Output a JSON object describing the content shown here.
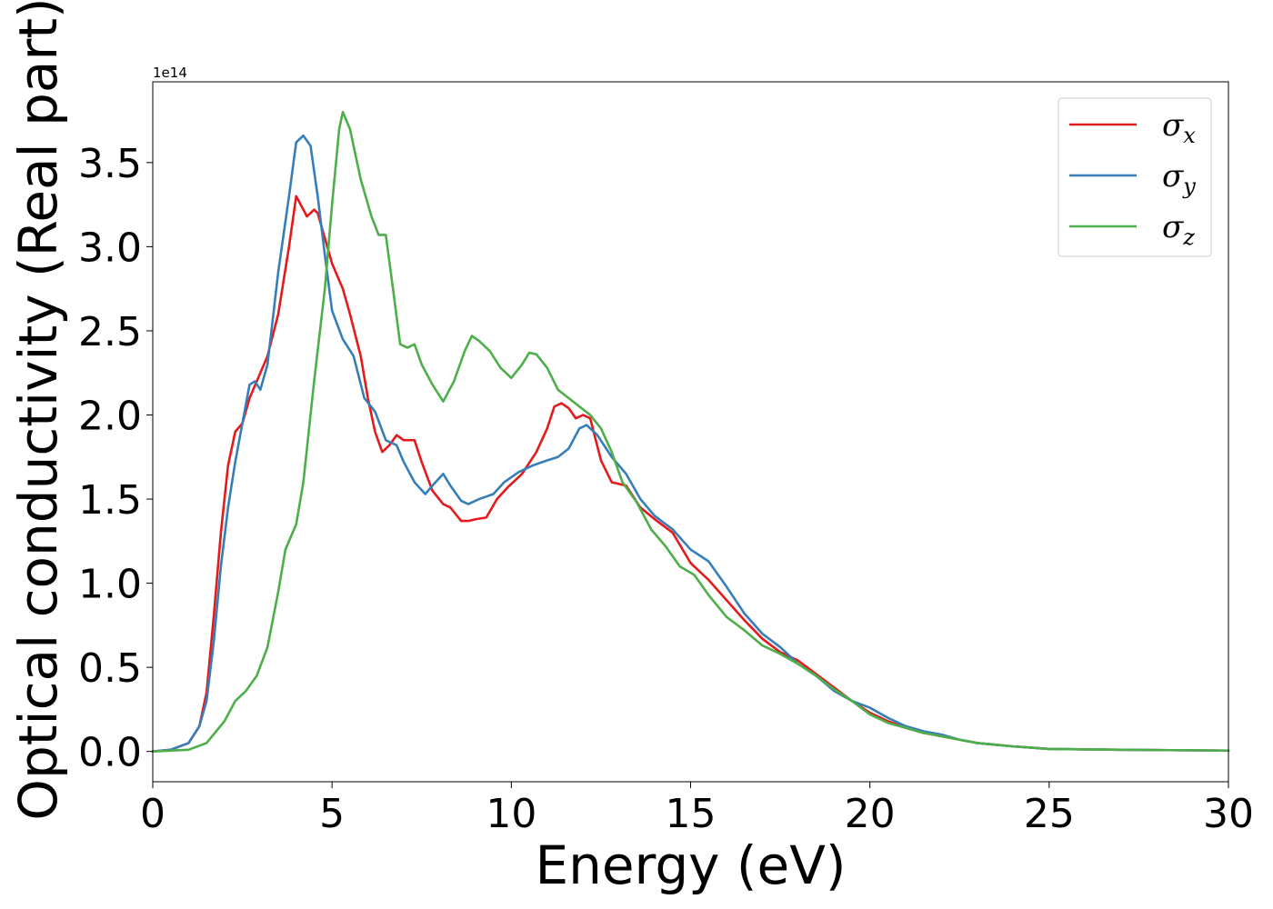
{
  "chart_data": {
    "type": "line",
    "xlabel": "Energy (eV)",
    "ylabel": "Optical conductivity (Real part)",
    "y_offset_label": "1e14",
    "xlim": [
      0,
      30
    ],
    "ylim": [
      -0.18,
      3.98
    ],
    "x_ticks": [
      0,
      5,
      10,
      15,
      20,
      25,
      30
    ],
    "x_tick_labels": [
      "0",
      "5",
      "10",
      "15",
      "20",
      "25",
      "30"
    ],
    "y_ticks": [
      0.0,
      0.5,
      1.0,
      1.5,
      2.0,
      2.5,
      3.0,
      3.5
    ],
    "y_tick_labels": [
      "0.0",
      "0.5",
      "1.0",
      "1.5",
      "2.0",
      "2.5",
      "3.0",
      "3.5"
    ],
    "grid": false,
    "legend_position": "top-right",
    "series": [
      {
        "name": "σx",
        "symbol": "σ",
        "subscript": "x",
        "color": "#e41a1c",
        "points": [
          [
            0,
            0
          ],
          [
            0.5,
            0.01
          ],
          [
            1.0,
            0.05
          ],
          [
            1.3,
            0.15
          ],
          [
            1.5,
            0.35
          ],
          [
            1.7,
            0.8
          ],
          [
            1.9,
            1.3
          ],
          [
            2.1,
            1.7
          ],
          [
            2.3,
            1.9
          ],
          [
            2.5,
            1.95
          ],
          [
            2.7,
            2.1
          ],
          [
            2.9,
            2.2
          ],
          [
            3.2,
            2.35
          ],
          [
            3.5,
            2.6
          ],
          [
            3.8,
            3.0
          ],
          [
            4.0,
            3.3
          ],
          [
            4.2,
            3.22
          ],
          [
            4.3,
            3.18
          ],
          [
            4.5,
            3.22
          ],
          [
            4.6,
            3.2
          ],
          [
            4.8,
            3.05
          ],
          [
            5.0,
            2.9
          ],
          [
            5.3,
            2.75
          ],
          [
            5.5,
            2.6
          ],
          [
            5.8,
            2.35
          ],
          [
            6.0,
            2.1
          ],
          [
            6.2,
            1.9
          ],
          [
            6.4,
            1.78
          ],
          [
            6.6,
            1.82
          ],
          [
            6.8,
            1.88
          ],
          [
            7.0,
            1.85
          ],
          [
            7.3,
            1.85
          ],
          [
            7.5,
            1.72
          ],
          [
            7.8,
            1.55
          ],
          [
            8.1,
            1.47
          ],
          [
            8.3,
            1.45
          ],
          [
            8.6,
            1.37
          ],
          [
            8.8,
            1.37
          ],
          [
            9.0,
            1.38
          ],
          [
            9.3,
            1.39
          ],
          [
            9.6,
            1.5
          ],
          [
            9.9,
            1.57
          ],
          [
            10.3,
            1.65
          ],
          [
            10.7,
            1.78
          ],
          [
            11.0,
            1.92
          ],
          [
            11.2,
            2.05
          ],
          [
            11.4,
            2.07
          ],
          [
            11.6,
            2.04
          ],
          [
            11.8,
            1.98
          ],
          [
            12.0,
            2.0
          ],
          [
            12.2,
            1.98
          ],
          [
            12.5,
            1.73
          ],
          [
            12.8,
            1.6
          ],
          [
            13.2,
            1.58
          ],
          [
            13.6,
            1.45
          ],
          [
            14.0,
            1.38
          ],
          [
            14.5,
            1.3
          ],
          [
            15.0,
            1.12
          ],
          [
            15.5,
            1.02
          ],
          [
            16.0,
            0.9
          ],
          [
            16.5,
            0.78
          ],
          [
            17.0,
            0.67
          ],
          [
            17.5,
            0.59
          ],
          [
            18.0,
            0.54
          ],
          [
            18.5,
            0.46
          ],
          [
            19.0,
            0.38
          ],
          [
            19.5,
            0.3
          ],
          [
            20.0,
            0.23
          ],
          [
            20.5,
            0.18
          ],
          [
            21.0,
            0.14
          ],
          [
            21.5,
            0.11
          ],
          [
            22.0,
            0.09
          ],
          [
            22.5,
            0.07
          ],
          [
            23.0,
            0.05
          ],
          [
            24.0,
            0.03
          ],
          [
            25.0,
            0.015
          ],
          [
            27.0,
            0.01
          ],
          [
            30.0,
            0.005
          ]
        ]
      },
      {
        "name": "σy",
        "symbol": "σ",
        "subscript": "y",
        "color": "#377eb8",
        "points": [
          [
            0,
            0
          ],
          [
            0.5,
            0.01
          ],
          [
            1.0,
            0.05
          ],
          [
            1.3,
            0.15
          ],
          [
            1.5,
            0.3
          ],
          [
            1.7,
            0.65
          ],
          [
            1.9,
            1.1
          ],
          [
            2.1,
            1.45
          ],
          [
            2.3,
            1.72
          ],
          [
            2.5,
            1.95
          ],
          [
            2.7,
            2.18
          ],
          [
            2.85,
            2.2
          ],
          [
            3.0,
            2.15
          ],
          [
            3.2,
            2.3
          ],
          [
            3.5,
            2.85
          ],
          [
            3.8,
            3.3
          ],
          [
            4.0,
            3.62
          ],
          [
            4.2,
            3.66
          ],
          [
            4.4,
            3.6
          ],
          [
            4.6,
            3.3
          ],
          [
            4.8,
            2.95
          ],
          [
            5.0,
            2.62
          ],
          [
            5.3,
            2.45
          ],
          [
            5.6,
            2.35
          ],
          [
            5.9,
            2.1
          ],
          [
            6.2,
            2.02
          ],
          [
            6.5,
            1.85
          ],
          [
            6.8,
            1.82
          ],
          [
            7.0,
            1.72
          ],
          [
            7.3,
            1.6
          ],
          [
            7.6,
            1.53
          ],
          [
            7.8,
            1.58
          ],
          [
            8.1,
            1.65
          ],
          [
            8.3,
            1.58
          ],
          [
            8.6,
            1.49
          ],
          [
            8.8,
            1.47
          ],
          [
            9.1,
            1.5
          ],
          [
            9.5,
            1.53
          ],
          [
            9.8,
            1.6
          ],
          [
            10.2,
            1.66
          ],
          [
            10.6,
            1.7
          ],
          [
            11.0,
            1.73
          ],
          [
            11.3,
            1.75
          ],
          [
            11.6,
            1.8
          ],
          [
            11.9,
            1.92
          ],
          [
            12.1,
            1.94
          ],
          [
            12.4,
            1.88
          ],
          [
            12.8,
            1.75
          ],
          [
            13.2,
            1.65
          ],
          [
            13.6,
            1.5
          ],
          [
            14.0,
            1.4
          ],
          [
            14.5,
            1.32
          ],
          [
            15.0,
            1.2
          ],
          [
            15.5,
            1.13
          ],
          [
            16.0,
            0.98
          ],
          [
            16.5,
            0.82
          ],
          [
            17.0,
            0.7
          ],
          [
            17.5,
            0.62
          ],
          [
            18.0,
            0.52
          ],
          [
            18.5,
            0.45
          ],
          [
            19.0,
            0.36
          ],
          [
            19.5,
            0.3
          ],
          [
            20.0,
            0.26
          ],
          [
            20.5,
            0.2
          ],
          [
            21.0,
            0.15
          ],
          [
            21.5,
            0.12
          ],
          [
            22.0,
            0.1
          ],
          [
            22.5,
            0.07
          ],
          [
            23.0,
            0.05
          ],
          [
            24.0,
            0.03
          ],
          [
            25.0,
            0.015
          ],
          [
            27.0,
            0.01
          ],
          [
            30.0,
            0.005
          ]
        ]
      },
      {
        "name": "σz",
        "symbol": "σ",
        "subscript": "z",
        "color": "#4daf4a",
        "points": [
          [
            0,
            0
          ],
          [
            1.0,
            0.01
          ],
          [
            1.5,
            0.05
          ],
          [
            2.0,
            0.18
          ],
          [
            2.3,
            0.3
          ],
          [
            2.6,
            0.36
          ],
          [
            2.9,
            0.45
          ],
          [
            3.2,
            0.62
          ],
          [
            3.5,
            0.95
          ],
          [
            3.7,
            1.2
          ],
          [
            4.0,
            1.35
          ],
          [
            4.2,
            1.6
          ],
          [
            4.5,
            2.2
          ],
          [
            4.8,
            2.75
          ],
          [
            5.0,
            3.25
          ],
          [
            5.2,
            3.7
          ],
          [
            5.3,
            3.8
          ],
          [
            5.5,
            3.7
          ],
          [
            5.8,
            3.4
          ],
          [
            6.1,
            3.18
          ],
          [
            6.3,
            3.07
          ],
          [
            6.5,
            3.07
          ],
          [
            6.7,
            2.75
          ],
          [
            6.9,
            2.42
          ],
          [
            7.1,
            2.4
          ],
          [
            7.3,
            2.42
          ],
          [
            7.5,
            2.3
          ],
          [
            7.8,
            2.18
          ],
          [
            8.1,
            2.08
          ],
          [
            8.4,
            2.2
          ],
          [
            8.7,
            2.38
          ],
          [
            8.9,
            2.47
          ],
          [
            9.1,
            2.44
          ],
          [
            9.4,
            2.38
          ],
          [
            9.7,
            2.28
          ],
          [
            10.0,
            2.22
          ],
          [
            10.3,
            2.3
          ],
          [
            10.5,
            2.37
          ],
          [
            10.7,
            2.36
          ],
          [
            11.0,
            2.28
          ],
          [
            11.3,
            2.15
          ],
          [
            11.6,
            2.1
          ],
          [
            11.9,
            2.05
          ],
          [
            12.2,
            2.0
          ],
          [
            12.5,
            1.92
          ],
          [
            12.8,
            1.78
          ],
          [
            13.1,
            1.6
          ],
          [
            13.5,
            1.48
          ],
          [
            13.9,
            1.32
          ],
          [
            14.3,
            1.22
          ],
          [
            14.7,
            1.1
          ],
          [
            15.1,
            1.05
          ],
          [
            15.5,
            0.93
          ],
          [
            16.0,
            0.8
          ],
          [
            16.5,
            0.72
          ],
          [
            17.0,
            0.63
          ],
          [
            17.5,
            0.58
          ],
          [
            18.0,
            0.52
          ],
          [
            18.5,
            0.45
          ],
          [
            19.0,
            0.37
          ],
          [
            19.5,
            0.3
          ],
          [
            20.0,
            0.22
          ],
          [
            20.5,
            0.17
          ],
          [
            21.0,
            0.14
          ],
          [
            21.5,
            0.11
          ],
          [
            22.0,
            0.09
          ],
          [
            22.5,
            0.07
          ],
          [
            23.0,
            0.05
          ],
          [
            24.0,
            0.03
          ],
          [
            25.0,
            0.015
          ],
          [
            27.0,
            0.01
          ],
          [
            30.0,
            0.005
          ]
        ]
      }
    ]
  }
}
